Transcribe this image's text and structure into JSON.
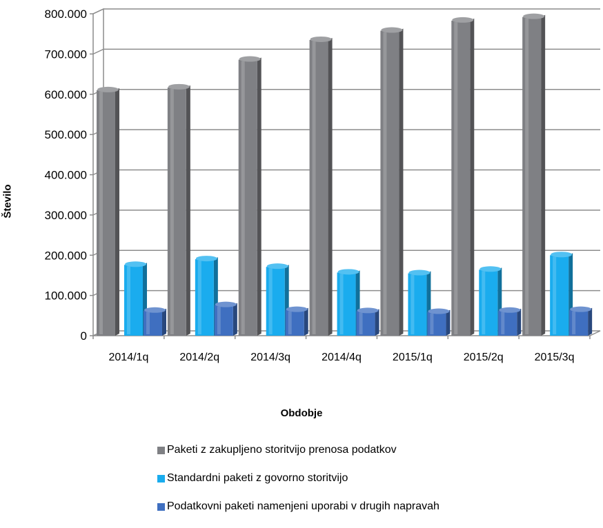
{
  "chart_data": {
    "type": "bar",
    "categories": [
      "2014/1q",
      "2014/2q",
      "2014/3q",
      "2014/4q",
      "2015/1q",
      "2015/2q",
      "2015/3q"
    ],
    "series": [
      {
        "name": "Paketi z zakupljeno storitvijo prenosa podatkov",
        "color": "#7f8084",
        "values": [
          610000,
          617000,
          686000,
          735000,
          758000,
          783000,
          792000
        ]
      },
      {
        "name": "Standardni paketi z govorno storitvijo",
        "color": "#1aacee",
        "values": [
          176000,
          190000,
          171000,
          157000,
          155000,
          164000,
          200000
        ]
      },
      {
        "name": "Podatkovni paketi namenjeni uporabi v drugih napravah",
        "color": "#3f6fc0",
        "values": [
          62000,
          76000,
          64000,
          61000,
          59000,
          62000,
          64000
        ]
      }
    ],
    "ylim": [
      0,
      800000
    ],
    "yticks": [
      "0",
      "100.000",
      "200.000",
      "300.000",
      "400.000",
      "500.000",
      "600.000",
      "700.000",
      "800.000"
    ],
    "xlabel": "Obdobje",
    "ylabel": "Število",
    "grid": true,
    "legend_position": "bottom"
  }
}
